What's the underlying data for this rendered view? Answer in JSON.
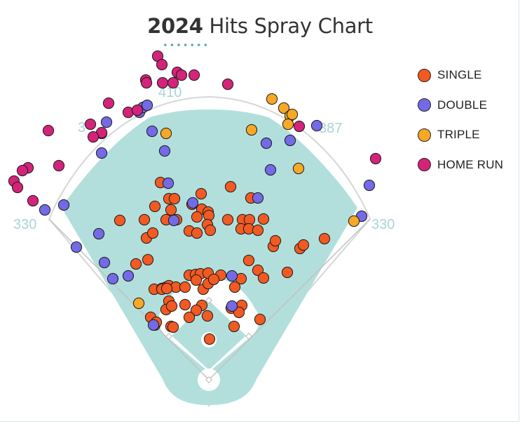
{
  "chart_data": {
    "type": "scatter",
    "title_year": "2024",
    "title_rest": "Hits Spray Chart",
    "fence_labels": {
      "left_line": "330",
      "left_center": "3",
      "center": "410",
      "right_center": "387",
      "right_line": "330"
    },
    "colors": {
      "field": "#b2dfdc",
      "outline": "#d6d6d6",
      "accent": "#4aa3b0",
      "label": "#a9d4d3"
    },
    "series": [
      {
        "name": "SINGLE",
        "color": "#f15a22",
        "points": [
          [
            229,
            260
          ],
          [
            241,
            283
          ],
          [
            249,
            283
          ],
          [
            287,
            276
          ],
          [
            329,
            266
          ],
          [
            358,
            282
          ],
          [
            221,
            294
          ],
          [
            244,
            299
          ],
          [
            274,
            291
          ],
          [
            288,
            298
          ],
          [
            297,
            302
          ],
          [
            171,
            314
          ],
          [
            206,
            313
          ],
          [
            237,
            313
          ],
          [
            252,
            313
          ],
          [
            281,
            309
          ],
          [
            298,
            307
          ],
          [
            325,
            313
          ],
          [
            346,
            313
          ],
          [
            356,
            313
          ],
          [
            376,
            312
          ],
          [
            209,
            339
          ],
          [
            218,
            332
          ],
          [
            270,
            329
          ],
          [
            281,
            332
          ],
          [
            296,
            320
          ],
          [
            300,
            328
          ],
          [
            344,
            326
          ],
          [
            355,
            326
          ],
          [
            368,
            328
          ],
          [
            390,
            351
          ],
          [
            393,
            343
          ],
          [
            428,
            354
          ],
          [
            433,
            349
          ],
          [
            463,
            340
          ],
          [
            194,
            376
          ],
          [
            211,
            370
          ],
          [
            270,
            392
          ],
          [
            279,
            391
          ],
          [
            286,
            390
          ],
          [
            297,
            389
          ],
          [
            315,
            392
          ],
          [
            355,
            371
          ],
          [
            368,
            385
          ],
          [
            376,
            396
          ],
          [
            410,
            388
          ],
          [
            220,
            412
          ],
          [
            231,
            411
          ],
          [
            237,
            409
          ],
          [
            241,
            407
          ],
          [
            251,
            409
          ],
          [
            264,
            409
          ],
          [
            280,
            399
          ],
          [
            290,
            412
          ],
          [
            297,
            404
          ],
          [
            305,
            398
          ],
          [
            344,
            397
          ],
          [
            335,
            409
          ],
          [
            231,
            412
          ],
          [
            238,
            411
          ],
          [
            241,
            429
          ],
          [
            237,
            441
          ],
          [
            245,
            436
          ],
          [
            264,
            434
          ],
          [
            288,
            435
          ],
          [
            280,
            442
          ],
          [
            296,
            450
          ],
          [
            215,
            452
          ],
          [
            221,
            463
          ],
          [
            223,
            459
          ],
          [
            244,
            465
          ],
          [
            247,
            466
          ],
          [
            330,
            439
          ],
          [
            345,
            435
          ],
          [
            341,
            445
          ],
          [
            371,
            455
          ],
          [
            334,
            465
          ],
          [
            299,
            483
          ],
          [
            270,
            452
          ]
        ]
      },
      {
        "name": "DOUBLE",
        "color": "#7469e6",
        "points": [
          [
            199,
            160
          ],
          [
            204,
            153
          ],
          [
            210,
            150
          ],
          [
            152,
            174
          ],
          [
            145,
            190
          ],
          [
            217,
            187
          ],
          [
            235,
            215
          ],
          [
            145,
            218
          ],
          [
            380,
            204
          ],
          [
            414,
            200
          ],
          [
            452,
            179
          ],
          [
            386,
            242
          ],
          [
            240,
            261
          ],
          [
            368,
            282
          ],
          [
            275,
            289
          ],
          [
            248,
            314
          ],
          [
            91,
            292
          ],
          [
            64,
            299
          ],
          [
            141,
            333
          ],
          [
            109,
            352
          ],
          [
            149,
            374
          ],
          [
            161,
            397
          ],
          [
            183,
            393
          ],
          [
            527,
            264
          ],
          [
            516,
            308
          ],
          [
            331,
            393
          ],
          [
            331,
            436
          ],
          [
            219,
            463
          ]
        ]
      },
      {
        "name": "TRIPLE",
        "color": "#f7a824",
        "points": [
          [
            388,
            141
          ],
          [
            405,
            154
          ],
          [
            414,
            165
          ],
          [
            417,
            163
          ],
          [
            411,
            177
          ],
          [
            359,
            185
          ],
          [
            237,
            190
          ],
          [
            426,
            240
          ],
          [
            505,
            315
          ],
          [
            198,
            432
          ]
        ]
      },
      {
        "name": "HOME RUN",
        "color": "#d4237a",
        "points": [
          [
            225,
            80
          ],
          [
            231,
            92
          ],
          [
            253,
            103
          ],
          [
            259,
            107
          ],
          [
            277,
            107
          ],
          [
            247,
            118
          ],
          [
            232,
            118
          ],
          [
            208,
            114
          ],
          [
            209,
            118
          ],
          [
            325,
            120
          ],
          [
            155,
            147
          ],
          [
            183,
            160
          ],
          [
            196,
            157
          ],
          [
            129,
            177
          ],
          [
            145,
            189
          ],
          [
            133,
            195
          ],
          [
            69,
            186
          ],
          [
            84,
            236
          ],
          [
            40,
            239
          ],
          [
            32,
            243
          ],
          [
            47,
            286
          ],
          [
            20,
            258
          ],
          [
            25,
            267
          ],
          [
            427,
            180
          ],
          [
            536,
            226
          ]
        ]
      }
    ]
  }
}
